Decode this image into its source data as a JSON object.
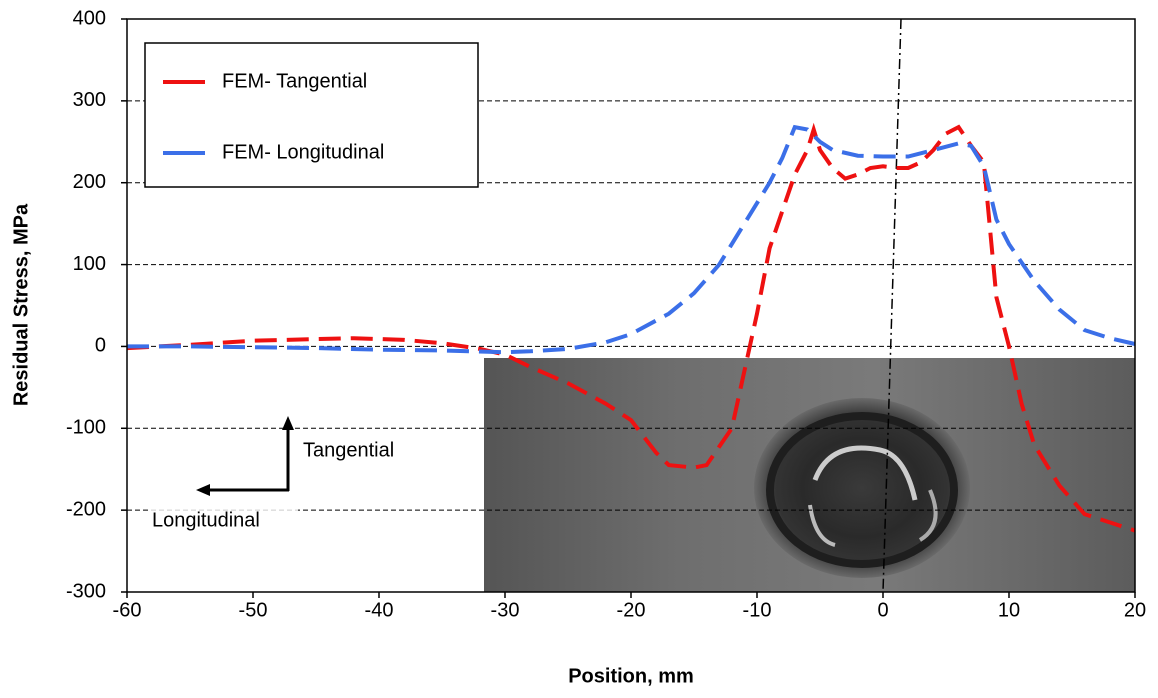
{
  "chart_data": {
    "type": "line",
    "x_label": "Position, mm",
    "y_label": "Residual Stress, MPa",
    "xlim": [
      -60,
      20
    ],
    "xticks": [
      -60,
      -50,
      -40,
      -30,
      -20,
      -10,
      0,
      10,
      20
    ],
    "ylim": [
      -300,
      400
    ],
    "yticks": [
      -300,
      -200,
      -100,
      0,
      100,
      200,
      300,
      400
    ],
    "grid": true,
    "legend": "upper left",
    "annotations": [
      "Tangential",
      "Longitudinal"
    ],
    "series": [
      {
        "name": "FEM- Tangential",
        "color": "#ee1111",
        "x": [
          -60,
          -55,
          -50,
          -45,
          -42,
          -38,
          -35,
          -32,
          -30,
          -28,
          -25,
          -22,
          -20,
          -18,
          -17,
          -15,
          -14,
          -12,
          -10,
          -9,
          -7,
          -6,
          -5.5,
          -5,
          -4,
          -3,
          -2,
          -1,
          0,
          1,
          2,
          3,
          4,
          5,
          6,
          7,
          8,
          9,
          10,
          11,
          12,
          14,
          16,
          18,
          20
        ],
        "values": [
          -2,
          2,
          7,
          9,
          10,
          8,
          4,
          -3,
          -10,
          -25,
          -45,
          -70,
          -90,
          -130,
          -145,
          -148,
          -145,
          -100,
          40,
          120,
          210,
          240,
          265,
          240,
          218,
          205,
          210,
          218,
          220,
          218,
          218,
          225,
          240,
          260,
          268,
          245,
          225,
          60,
          0,
          -70,
          -120,
          -170,
          -205,
          -215,
          -225
        ]
      },
      {
        "name": "FEM- Longitudinal",
        "color": "#3b6fe8",
        "x": [
          -60,
          -55,
          -50,
          -45,
          -40,
          -35,
          -30,
          -28,
          -25,
          -22,
          -20,
          -17,
          -15,
          -13,
          -11,
          -9,
          -8,
          -7,
          -6,
          -5,
          -4,
          -2,
          0,
          2,
          4,
          6,
          7,
          8,
          9,
          10,
          12,
          14,
          16,
          18,
          20
        ],
        "values": [
          0,
          0,
          -1,
          -2,
          -4,
          -5,
          -7,
          -6,
          -3,
          5,
          15,
          40,
          65,
          100,
          150,
          200,
          230,
          268,
          265,
          250,
          240,
          233,
          232,
          232,
          240,
          248,
          245,
          220,
          155,
          125,
          80,
          45,
          20,
          10,
          3
        ]
      }
    ]
  }
}
